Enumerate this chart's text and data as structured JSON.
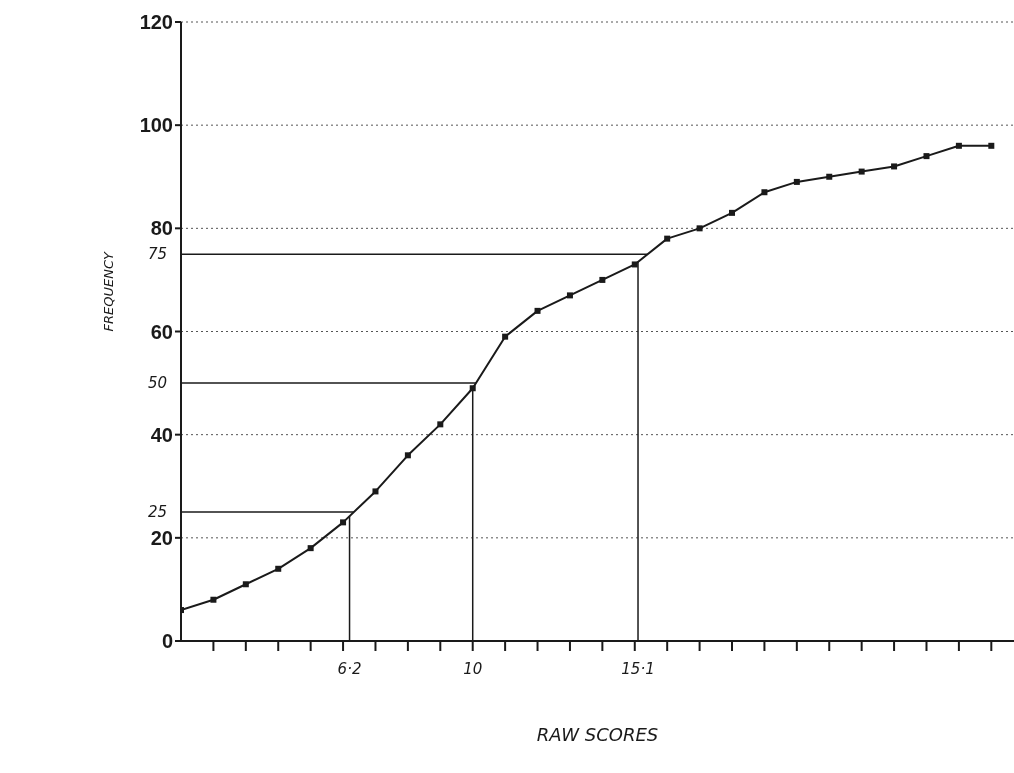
{
  "chart_data": {
    "type": "line",
    "xlabel": "RAW SCORES",
    "ylabel": "FREQUENCY",
    "x": [
      1,
      2,
      3,
      4,
      5,
      6,
      7,
      8,
      9,
      10,
      11,
      12,
      13,
      14,
      15,
      16,
      17,
      18,
      19,
      20,
      21,
      22,
      23,
      24,
      25,
      26
    ],
    "series": [
      {
        "color": "#1a1a1a",
        "values": [
          6,
          8,
          11,
          14,
          18,
          23,
          29,
          36,
          42,
          49,
          59,
          64,
          67,
          70,
          73,
          78,
          80,
          83,
          87,
          89,
          90,
          91,
          92,
          94,
          96,
          96
        ]
      }
    ],
    "xlim": [
      1,
      26.7
    ],
    "xticks": [
      {
        "value": 2,
        "label": null
      },
      {
        "value": 3,
        "label": null
      },
      {
        "value": 4,
        "label": null
      },
      {
        "value": 5,
        "label": null
      },
      {
        "value": 6,
        "label": null
      },
      {
        "value": 7,
        "label": null
      },
      {
        "value": 8,
        "label": null
      },
      {
        "value": 9,
        "label": null
      },
      {
        "value": 10,
        "label": null
      },
      {
        "value": 11,
        "label": null
      },
      {
        "value": 12,
        "label": null
      },
      {
        "value": 13,
        "label": null
      },
      {
        "value": 14,
        "label": null
      },
      {
        "value": 15,
        "label": null
      },
      {
        "value": 16,
        "label": null
      },
      {
        "value": 17,
        "label": null
      },
      {
        "value": 18,
        "label": null
      },
      {
        "value": 19,
        "label": null
      },
      {
        "value": 20,
        "label": null
      },
      {
        "value": 21,
        "label": null
      },
      {
        "value": 22,
        "label": null
      },
      {
        "value": 23,
        "label": null
      },
      {
        "value": 24,
        "label": null
      },
      {
        "value": 25,
        "label": null
      },
      {
        "value": 26,
        "label": null
      }
    ],
    "ylim": [
      0,
      120
    ],
    "yticks": [
      0,
      20,
      40,
      60,
      80,
      100,
      120
    ],
    "grid": "y",
    "marker": "square",
    "line_style": "solid",
    "ref_lines": [
      {
        "axis": "y",
        "value": 25,
        "label": "25",
        "color": "#1a1a1a"
      },
      {
        "axis": "y",
        "value": 50,
        "label": "50",
        "color": "#1a1a1a"
      },
      {
        "axis": "y",
        "value": 75,
        "label": "75",
        "color": "#1a1a1a"
      },
      {
        "axis": "x",
        "value": 6.2,
        "label": "6·2",
        "color": "#1a1a1a"
      },
      {
        "axis": "x",
        "value": 10,
        "label": "10",
        "color": "#1a1a1a"
      },
      {
        "axis": "x",
        "value": 15.1,
        "label": "15·1",
        "color": "#1a1a1a"
      }
    ]
  }
}
